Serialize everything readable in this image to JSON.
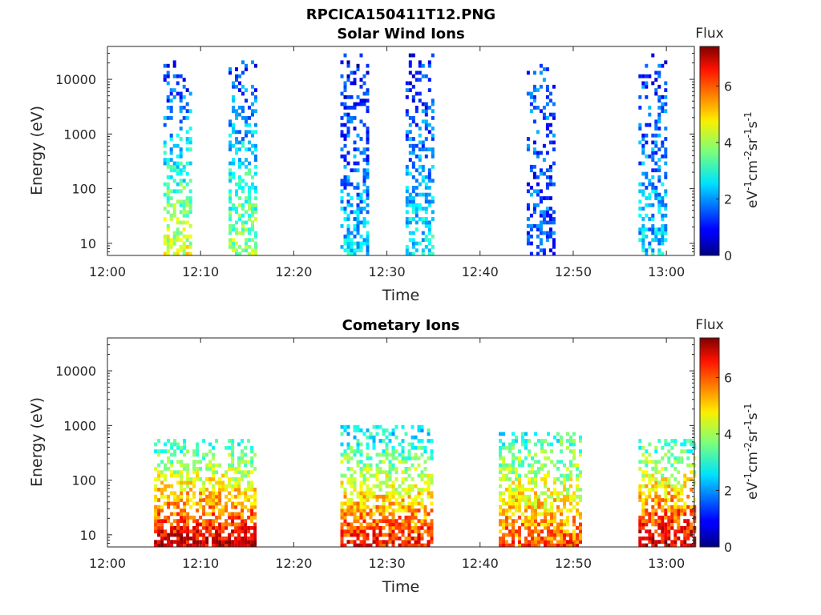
{
  "figure_title": "RPCICA150411T12.PNG",
  "colorbar": {
    "title": "Flux",
    "label_main": "eV",
    "label_parts": [
      "eV",
      "-1",
      "cm",
      "-2",
      "sr",
      "-1",
      "s",
      "-1"
    ],
    "range": [
      0,
      7.4
    ],
    "ticks": [
      "0",
      "2",
      "4",
      "6"
    ],
    "colormap": "jet"
  },
  "chart_data": [
    {
      "type": "heatmap",
      "title": "Solar Wind Ions",
      "xlabel": "Time",
      "ylabel": "Energy (eV)",
      "xlim": [
        "12:00",
        "13:03"
      ],
      "ylim": [
        6,
        40000
      ],
      "yscale": "log",
      "xticks": [
        "12:00",
        "12:10",
        "12:20",
        "12:30",
        "12:40",
        "12:50",
        "13:00"
      ],
      "yticks": [
        "10",
        "100",
        "1000",
        "10000"
      ],
      "bursts": [
        {
          "start": "12:06",
          "end": "12:08",
          "emax": 25000,
          "flux_low_energy": 4.5,
          "flux_high_energy": 1.0
        },
        {
          "start": "12:13",
          "end": "12:15",
          "emax": 25000,
          "flux_low_energy": 4.0,
          "flux_high_energy": 1.2
        },
        {
          "start": "12:25",
          "end": "12:27",
          "emax": 30000,
          "flux_low_energy": 2.5,
          "flux_high_energy": 0.8
        },
        {
          "start": "12:32",
          "end": "12:34",
          "emax": 30000,
          "flux_low_energy": 2.8,
          "flux_high_energy": 1.0
        },
        {
          "start": "12:45",
          "end": "12:47",
          "emax": 20000,
          "flux_low_energy": 1.5,
          "flux_high_energy": 1.5
        },
        {
          "start": "12:57",
          "end": "12:59",
          "emax": 30000,
          "flux_low_energy": 2.5,
          "flux_high_energy": 1.2
        }
      ]
    },
    {
      "type": "heatmap",
      "title": "Cometary Ions",
      "xlabel": "Time",
      "ylabel": "Energy (eV)",
      "xlim": [
        "12:00",
        "13:03"
      ],
      "ylim": [
        6,
        40000
      ],
      "yscale": "log",
      "xticks": [
        "12:00",
        "12:10",
        "12:20",
        "12:30",
        "12:40",
        "12:50",
        "13:00"
      ],
      "yticks": [
        "10",
        "100",
        "1000",
        "10000"
      ],
      "bursts": [
        {
          "start": "12:05",
          "end": "12:15",
          "emax": 600,
          "flux_low_energy": 7.0,
          "flux_high_energy": 3.0
        },
        {
          "start": "12:25",
          "end": "12:34",
          "emax": 1100,
          "flux_low_energy": 6.5,
          "flux_high_energy": 2.5
        },
        {
          "start": "12:42",
          "end": "12:50",
          "emax": 800,
          "flux_low_energy": 6.0,
          "flux_high_energy": 3.0
        },
        {
          "start": "12:57",
          "end": "13:02",
          "emax": 600,
          "flux_low_energy": 7.0,
          "flux_high_energy": 3.0
        }
      ]
    }
  ]
}
